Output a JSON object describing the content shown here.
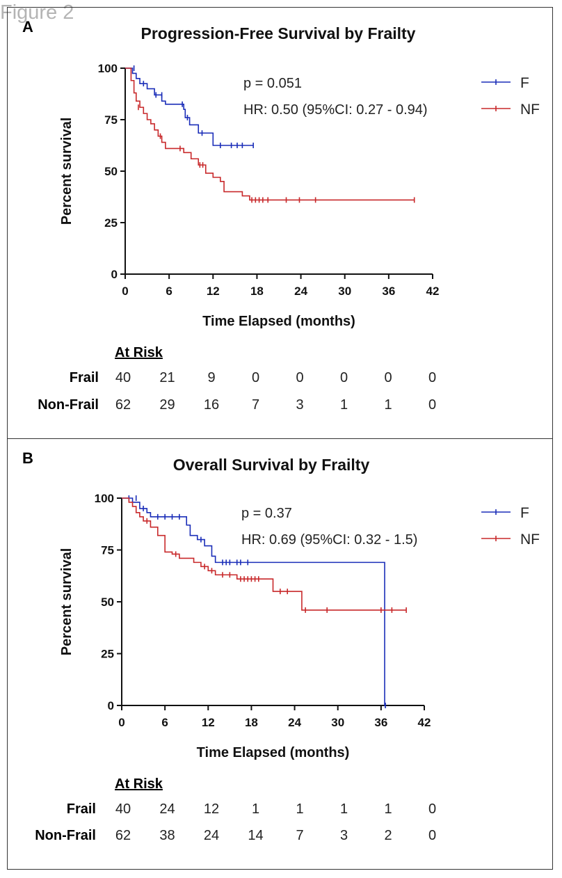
{
  "figure_label": "Figure 2",
  "chart_data": [
    {
      "panel": "A",
      "type": "line",
      "title": "Progression-Free Survival by Frailty",
      "xlabel": "Time Elapsed (months)",
      "ylabel": "Percent survival",
      "xlim": [
        0,
        42
      ],
      "ylim": [
        0,
        100
      ],
      "xticks": [
        "0",
        "6",
        "12",
        "18",
        "24",
        "30",
        "36",
        "42"
      ],
      "yticks": [
        "0",
        "25",
        "50",
        "75",
        "100"
      ],
      "legend_position": "top-right",
      "stats": [
        "p = 0.051",
        "HR: 0.50 (95%CI: 0.27 - 0.94)"
      ],
      "series": [
        {
          "name": "F",
          "color": "#1a2db8",
          "steps": [
            [
              0,
              100
            ],
            [
              1,
              97.5
            ],
            [
              1.5,
              95
            ],
            [
              2,
              92.5
            ],
            [
              3,
              90
            ],
            [
              4,
              87
            ],
            [
              5,
              84
            ],
            [
              5.5,
              82.5
            ],
            [
              8,
              80
            ],
            [
              8.2,
              76
            ],
            [
              8.8,
              72.5
            ],
            [
              10,
              68.5
            ],
            [
              12,
              62.5
            ],
            [
              17.5,
              62.5
            ]
          ],
          "censors": [
            [
              1.2,
              100
            ],
            [
              2.5,
              92.5
            ],
            [
              4.2,
              87
            ],
            [
              5,
              87
            ],
            [
              7.8,
              82.5
            ],
            [
              8.5,
              76
            ],
            [
              10.5,
              68.5
            ],
            [
              13,
              62.5
            ],
            [
              14.5,
              62.5
            ],
            [
              15.3,
              62.5
            ],
            [
              16,
              62.5
            ],
            [
              17.5,
              62.5
            ]
          ]
        },
        {
          "name": "NF",
          "color": "#c8282a",
          "steps": [
            [
              0,
              100
            ],
            [
              0.8,
              94
            ],
            [
              1.2,
              88
            ],
            [
              1.5,
              84
            ],
            [
              2,
              81
            ],
            [
              2.5,
              78
            ],
            [
              3,
              75
            ],
            [
              3.5,
              73
            ],
            [
              4,
              70
            ],
            [
              4.5,
              67
            ],
            [
              5,
              64
            ],
            [
              5.5,
              61
            ],
            [
              8,
              59
            ],
            [
              9,
              56
            ],
            [
              10,
              53
            ],
            [
              11,
              49
            ],
            [
              12,
              47
            ],
            [
              13,
              45
            ],
            [
              13.5,
              40
            ],
            [
              16,
              38
            ],
            [
              17,
              36
            ],
            [
              39.5,
              36
            ]
          ],
          "censors": [
            [
              1.8,
              81
            ],
            [
              4.8,
              67
            ],
            [
              7.5,
              61
            ],
            [
              10.2,
              53
            ],
            [
              10.6,
              53
            ],
            [
              17.3,
              36
            ],
            [
              17.8,
              36
            ],
            [
              18.3,
              36
            ],
            [
              18.8,
              36
            ],
            [
              19.5,
              36
            ],
            [
              22,
              36
            ],
            [
              23.8,
              36
            ],
            [
              26,
              36
            ],
            [
              39.5,
              36
            ]
          ]
        }
      ],
      "at_risk": {
        "header": "At Risk",
        "rows": [
          {
            "label": "Frail",
            "values": [
              "40",
              "21",
              "9",
              "0",
              "0",
              "0",
              "0",
              "0"
            ]
          },
          {
            "label": "Non-Frail",
            "values": [
              "62",
              "29",
              "16",
              "7",
              "3",
              "1",
              "1",
              "0"
            ]
          }
        ]
      }
    },
    {
      "panel": "B",
      "type": "line",
      "title": "Overall Survival by Frailty",
      "xlabel": "Time Elapsed (months)",
      "ylabel": "Percent survival",
      "xlim": [
        0,
        42
      ],
      "ylim": [
        0,
        100
      ],
      "xticks": [
        "0",
        "6",
        "12",
        "18",
        "24",
        "30",
        "36",
        "42"
      ],
      "yticks": [
        "0",
        "25",
        "50",
        "75",
        "100"
      ],
      "legend_position": "top-right",
      "stats": [
        "p = 0.37",
        "HR: 0.69 (95%CI: 0.32 - 1.5)"
      ],
      "series": [
        {
          "name": "F",
          "color": "#1a2db8",
          "steps": [
            [
              0,
              100
            ],
            [
              1.5,
              98
            ],
            [
              2.5,
              95
            ],
            [
              3.5,
              93
            ],
            [
              4,
              91
            ],
            [
              9,
              87
            ],
            [
              9.5,
              82
            ],
            [
              10.5,
              80
            ],
            [
              11.5,
              77
            ],
            [
              12.5,
              72
            ],
            [
              13,
              69
            ],
            [
              36.5,
              69
            ],
            [
              36.5,
              0
            ],
            [
              36.6,
              0
            ]
          ],
          "censors": [
            [
              1,
              100
            ],
            [
              2,
              100
            ],
            [
              3,
              95
            ],
            [
              5,
              91
            ],
            [
              6,
              91
            ],
            [
              7,
              91
            ],
            [
              8,
              91
            ],
            [
              11,
              80
            ],
            [
              14,
              69
            ],
            [
              14.5,
              69
            ],
            [
              15,
              69
            ],
            [
              16,
              69
            ],
            [
              16.5,
              69
            ],
            [
              17.5,
              69
            ],
            [
              36.6,
              0
            ]
          ]
        },
        {
          "name": "NF",
          "color": "#c8282a",
          "steps": [
            [
              0,
              100
            ],
            [
              1,
              98
            ],
            [
              1.5,
              96
            ],
            [
              2,
              93
            ],
            [
              2.5,
              91
            ],
            [
              3,
              89
            ],
            [
              4,
              86
            ],
            [
              5,
              82
            ],
            [
              6,
              74
            ],
            [
              7,
              73
            ],
            [
              8,
              71
            ],
            [
              10,
              69
            ],
            [
              11,
              67
            ],
            [
              12,
              65
            ],
            [
              13,
              63
            ],
            [
              16,
              61
            ],
            [
              21,
              55
            ],
            [
              25,
              46
            ],
            [
              39.5,
              46
            ]
          ],
          "censors": [
            [
              3.5,
              89
            ],
            [
              7.5,
              73
            ],
            [
              11.5,
              67
            ],
            [
              12.5,
              65
            ],
            [
              14,
              63
            ],
            [
              15,
              63
            ],
            [
              16.5,
              61
            ],
            [
              17,
              61
            ],
            [
              17.5,
              61
            ],
            [
              18,
              61
            ],
            [
              18.5,
              61
            ],
            [
              19,
              61
            ],
            [
              22,
              55
            ],
            [
              23,
              55
            ],
            [
              25.5,
              46
            ],
            [
              28.5,
              46
            ],
            [
              36,
              46
            ],
            [
              37.5,
              46
            ],
            [
              39.5,
              46
            ]
          ]
        }
      ],
      "at_risk": {
        "header": "At Risk",
        "rows": [
          {
            "label": "Frail",
            "values": [
              "40",
              "24",
              "12",
              "1",
              "1",
              "1",
              "1",
              "0"
            ]
          },
          {
            "label": "Non-Frail",
            "values": [
              "62",
              "38",
              "24",
              "14",
              "7",
              "3",
              "2",
              "0"
            ]
          }
        ]
      }
    }
  ]
}
